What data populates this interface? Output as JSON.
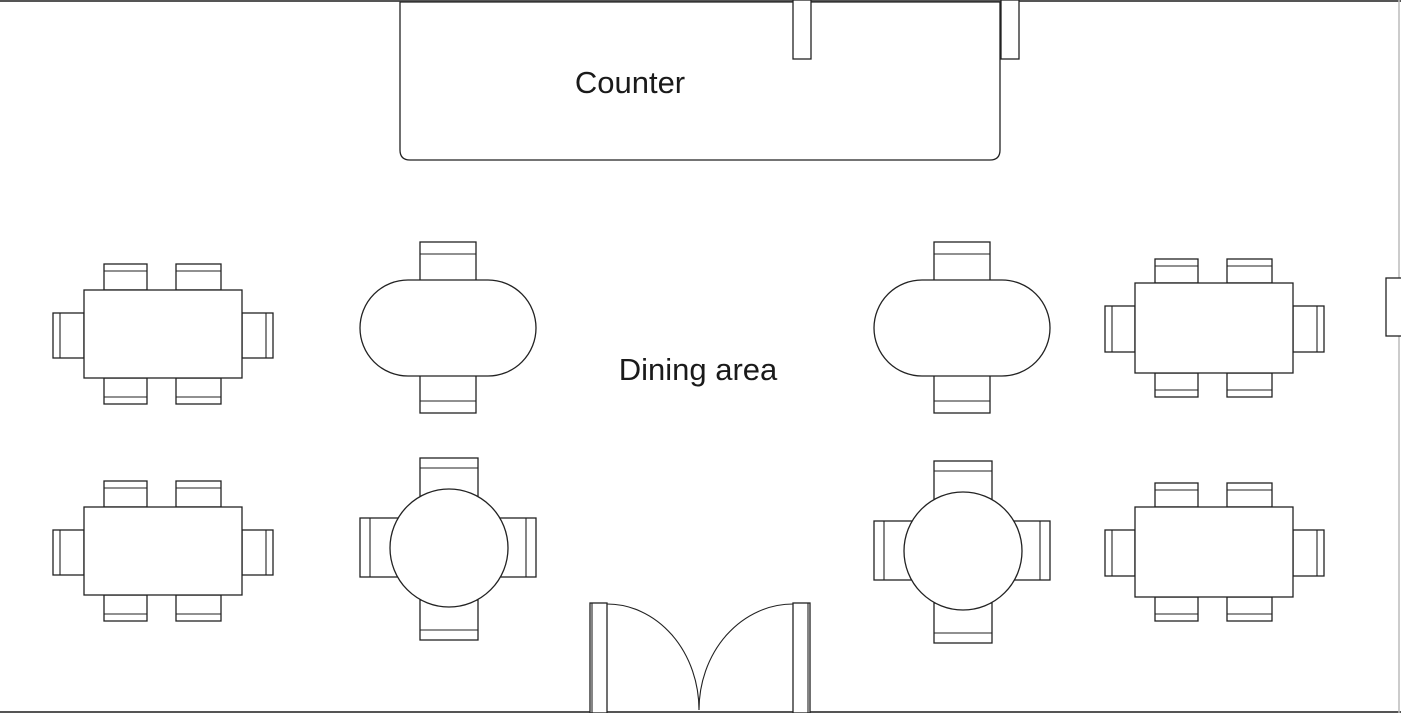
{
  "diagram": {
    "type": "floor-plan",
    "labels": {
      "counter": "Counter",
      "dining_area": "Dining area"
    },
    "tables": [
      {
        "id": "table-rect-1",
        "shape": "rectangle",
        "seats": 6
      },
      {
        "id": "table-rect-2",
        "shape": "rectangle",
        "seats": 6
      },
      {
        "id": "table-oval-1",
        "shape": "oval",
        "seats": 2
      },
      {
        "id": "table-round-1",
        "shape": "round",
        "seats": 4
      },
      {
        "id": "table-oval-2",
        "shape": "oval",
        "seats": 2
      },
      {
        "id": "table-round-2",
        "shape": "round",
        "seats": 4
      },
      {
        "id": "table-rect-3",
        "shape": "rectangle",
        "seats": 6
      },
      {
        "id": "table-rect-4",
        "shape": "rectangle",
        "seats": 6
      }
    ],
    "entrance": {
      "type": "double-door"
    },
    "colors": {
      "line": "#222222",
      "background": "#ffffff"
    }
  }
}
